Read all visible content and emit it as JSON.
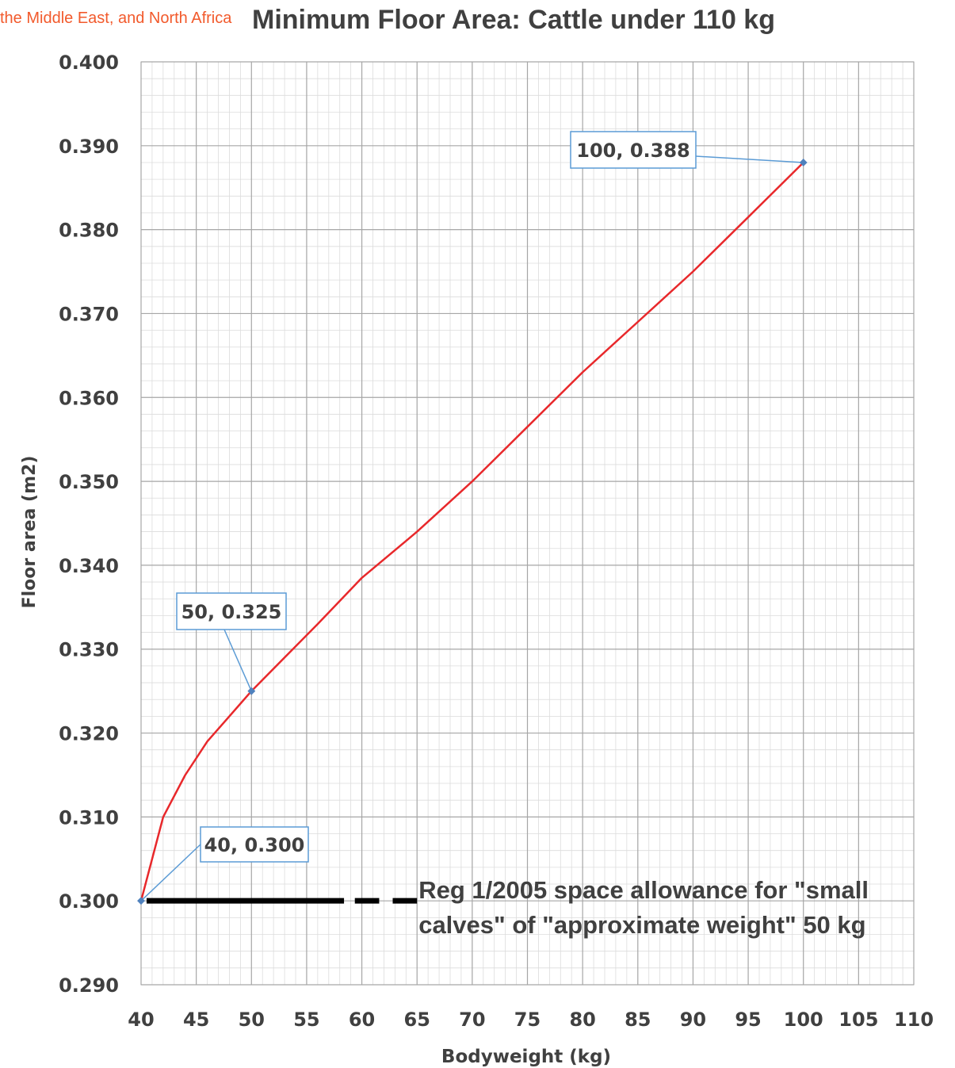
{
  "overlay_text": "the Middle East, and North Africa",
  "chart_data": {
    "type": "line",
    "title": "Minimum Floor Area: Cattle under 110 kg",
    "xlabel": "Bodyweight (kg)",
    "ylabel": "Floor area (m2)",
    "xlim": [
      40,
      110
    ],
    "ylim": [
      0.29,
      0.4
    ],
    "x_ticks": [
      40,
      45,
      50,
      55,
      60,
      65,
      70,
      75,
      80,
      85,
      90,
      95,
      100,
      105,
      110
    ],
    "y_ticks": [
      "0.290",
      "0.300",
      "0.310",
      "0.320",
      "0.330",
      "0.340",
      "0.350",
      "0.360",
      "0.370",
      "0.380",
      "0.390",
      "0.400"
    ],
    "grid": true,
    "series": [
      {
        "color": "#e8282b",
        "x": [
          40,
          42,
          44,
          46,
          48,
          50,
          53,
          56,
          60,
          65,
          70,
          75,
          80,
          85,
          90,
          95,
          100
        ],
        "y": [
          0.3,
          0.31,
          0.315,
          0.319,
          0.322,
          0.325,
          0.329,
          0.333,
          0.3385,
          0.344,
          0.35,
          0.3565,
          0.363,
          0.369,
          0.375,
          0.3815,
          0.388
        ]
      }
    ],
    "data_labels": [
      {
        "x": 40,
        "y": 0.3,
        "text": "40, 0.300"
      },
      {
        "x": 50,
        "y": 0.325,
        "text": "50, 0.325"
      },
      {
        "x": 100,
        "y": 0.388,
        "text": "100, 0.388"
      }
    ],
    "reference_line": {
      "y": 0.3,
      "x_start": 40.5,
      "x_end": 65,
      "color": "#000000",
      "label": "Reg 1/2005 space allowance for \"small calves\" of \"approximate weight\" 50 kg"
    },
    "colors": {
      "line": "#e8282b",
      "label_border": "#5b9bd5",
      "marker": "#4f81bd",
      "grid": "#bfbfbf"
    }
  }
}
